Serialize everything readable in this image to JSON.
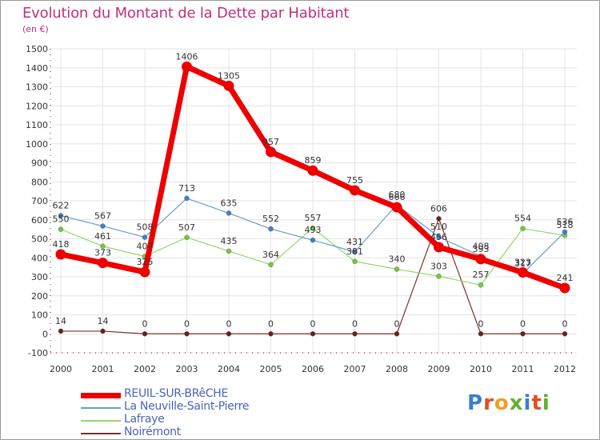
{
  "title": "Evolution du Montant de la Dette par Habitant",
  "subtitle": "(en €)",
  "logo": {
    "text": "Proxiti",
    "colors": [
      "#3a7fd0",
      "#e05020",
      "#f0a020",
      "#60b030",
      "#3a7fd0",
      "#e05020",
      "#60b030"
    ]
  },
  "chart_data": {
    "type": "line",
    "title": "Evolution du Montant de la Dette par Habitant",
    "ylabel": "(en €)",
    "xlabel": "",
    "ylim": [
      -100,
      1500
    ],
    "yticks": [
      -100,
      0,
      100,
      200,
      300,
      400,
      500,
      600,
      700,
      800,
      900,
      1000,
      1100,
      1200,
      1300,
      1400,
      1500
    ],
    "categories": [
      "2000",
      "2001",
      "2002",
      "2003",
      "2004",
      "2005",
      "2006",
      "2007",
      "2008",
      "2009",
      "2010",
      "2011",
      "2012"
    ],
    "legend_position": "bottom-left",
    "grid": true,
    "series": [
      {
        "name": "REUIL-SUR-BRêCHE",
        "color": "#ee0000",
        "dot": "#ee0000",
        "width": 7,
        "values": [
          418,
          373,
          325,
          1406,
          1305,
          957,
          859,
          755,
          666,
          456,
          393,
          323,
          241
        ]
      },
      {
        "name": "La Neuville-Saint-Pierre",
        "color": "#6a9ccc",
        "dot": "#3a80cc",
        "width": 1.2,
        "values": [
          622,
          567,
          508,
          713,
          635,
          552,
          493,
          431,
          680,
          510,
          408,
          317,
          536
        ]
      },
      {
        "name": "Lafraye",
        "color": "#90d870",
        "dot": "#76c83a",
        "width": 1.2,
        "values": [
          550,
          461,
          407,
          507,
          435,
          364,
          557,
          381,
          340,
          303,
          257,
          554,
          518
        ]
      },
      {
        "name": "Noirémont",
        "color": "#7a3030",
        "dot": "#6a2020",
        "width": 1.2,
        "values": [
          14,
          14,
          0,
          0,
          0,
          0,
          0,
          0,
          0,
          606,
          0,
          0,
          0
        ]
      }
    ]
  }
}
